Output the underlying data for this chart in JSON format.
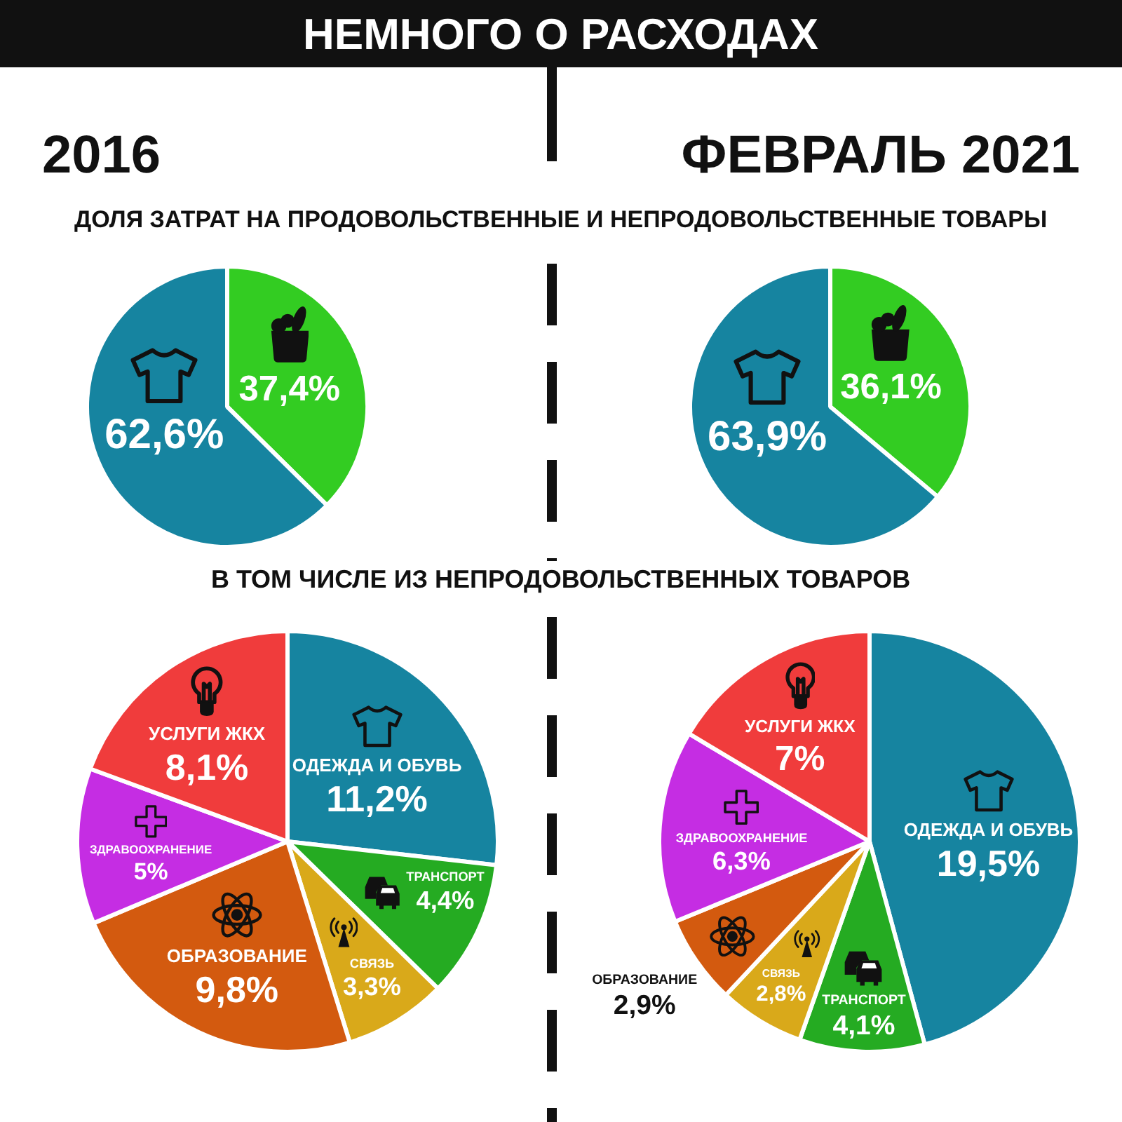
{
  "chart_data": [
    {
      "type": "other",
      "title": "НЕМНОГО О РАСХОДАХ"
    },
    {
      "type": "pie",
      "title": "2016",
      "subtitle": "ДОЛЯ ЗАТРАТ НА ПРОДОВОЛЬСТВЕННЫЕ И НЕПРОДОВОЛЬСТВЕННЫЕ ТОВАРЫ",
      "categories": [
        null,
        null
      ],
      "values": [
        37.4,
        62.6
      ],
      "colors": [
        "#33cc22",
        "#1684a0"
      ],
      "value_labels": [
        "37,4%",
        "62,6%"
      ]
    },
    {
      "type": "pie",
      "title": "ФЕВРАЛЬ 2021",
      "categories": [
        null,
        null
      ],
      "values": [
        36.1,
        63.9
      ],
      "colors": [
        "#33cc22",
        "#1684a0"
      ],
      "value_labels": [
        "36,1%",
        "63,9%"
      ]
    },
    {
      "type": "pie",
      "subtitle": "В ТОМ ЧИСЛЕ ИЗ НЕПРОДОВОЛЬСТВЕННЫХ ТОВАРОВ",
      "categories": [
        "ОДЕЖДА И ОБУВЬ",
        "ТРАНСПОРТ",
        "СВЯЗЬ",
        "ОБРАЗОВАНИЕ",
        "ЗДРАВООХРАНЕНИЕ",
        "УСЛУГИ ЖКХ"
      ],
      "values": [
        11.2,
        4.4,
        3.3,
        9.8,
        5,
        8.1
      ],
      "colors": [
        "#1684a0",
        "#25ab22",
        "#d9a91a",
        "#d35a0f",
        "#c52de3",
        "#f03c3c"
      ],
      "value_labels": [
        "11,2%",
        "4,4%",
        "3,3%",
        "9,8%",
        "5%",
        "8,1%"
      ]
    },
    {
      "type": "pie",
      "categories": [
        "ОДЕЖДА И ОБУВЬ",
        "ТРАНСПОРТ",
        "СВЯЗЬ",
        "ОБРАЗОВАНИЕ",
        "ЗДРАВООХРАНЕНИЕ",
        "УСЛУГИ ЖКХ"
      ],
      "values": [
        19.5,
        4.1,
        2.8,
        2.9,
        6.3,
        7
      ],
      "colors": [
        "#1684a0",
        "#25ab22",
        "#d9a91a",
        "#d35a0f",
        "#c52de3",
        "#f03c3c"
      ],
      "value_labels": [
        "19,5%",
        "4,1%",
        "2,8%",
        "2,9%",
        "6,3%",
        "7%"
      ]
    }
  ]
}
